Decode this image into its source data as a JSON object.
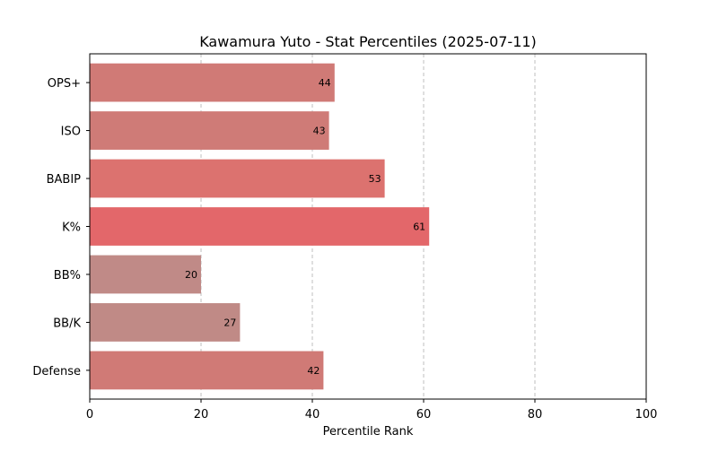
{
  "chart_data": {
    "type": "bar",
    "orientation": "horizontal",
    "title": "Kawamura Yuto - Stat Percentiles (2025-07-11)",
    "xlabel": "Percentile Rank",
    "ylabel": "",
    "xlim": [
      0,
      100
    ],
    "xticks": [
      0,
      20,
      40,
      60,
      80,
      100
    ],
    "grid": "x-dashed",
    "categories": [
      "OPS+",
      "ISO",
      "BABIP",
      "K%",
      "BB%",
      "BB/K",
      "Defense"
    ],
    "values": [
      44,
      43,
      53,
      61,
      20,
      27,
      42
    ],
    "colors": [
      "#d07a76",
      "#cf7b77",
      "#dc726f",
      "#e3676a",
      "#c08a87",
      "#c08a86",
      "#d07a76"
    ]
  }
}
